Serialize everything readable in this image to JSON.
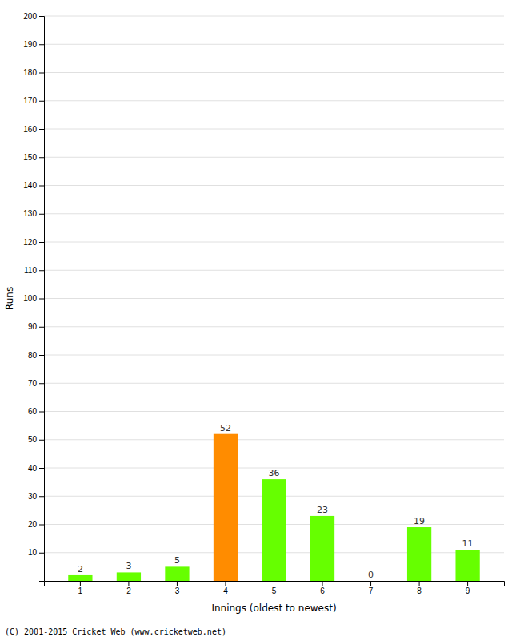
{
  "chart_data": {
    "type": "bar",
    "xlabel": "Innings (oldest to newest)",
    "ylabel": "Runs",
    "categories": [
      "1",
      "2",
      "3",
      "4",
      "5",
      "6",
      "7",
      "8",
      "9"
    ],
    "values": [
      2,
      3,
      5,
      52,
      36,
      23,
      0,
      19,
      11
    ],
    "colors": [
      "#66ff00",
      "#66ff00",
      "#66ff00",
      "#ff8c00",
      "#66ff00",
      "#66ff00",
      "#66ff00",
      "#66ff00",
      "#66ff00"
    ],
    "ylim": [
      0,
      200
    ],
    "yticks": [
      10,
      20,
      30,
      40,
      50,
      60,
      70,
      80,
      90,
      100,
      110,
      120,
      130,
      140,
      150,
      160,
      170,
      180,
      190,
      200
    ],
    "grid": true,
    "data_labels": true,
    "annotations": [
      "(C) 2001-2015 Cricket Web (www.cricketweb.net)"
    ]
  }
}
